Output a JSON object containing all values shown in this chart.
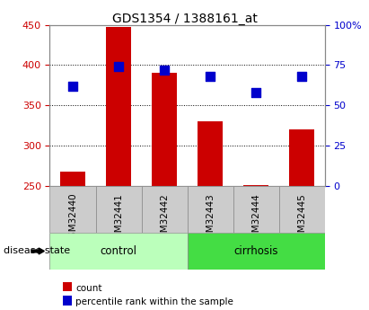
{
  "title": "GDS1354 / 1388161_at",
  "samples": [
    "GSM32440",
    "GSM32441",
    "GSM32442",
    "GSM32443",
    "GSM32444",
    "GSM32445"
  ],
  "bar_values": [
    268,
    447,
    390,
    330,
    251,
    320
  ],
  "bar_bottom": 250,
  "percentile_values": [
    62,
    74,
    72,
    68,
    58,
    68
  ],
  "groups": [
    {
      "label": "control",
      "indices": [
        0,
        1,
        2
      ],
      "color": "#bbffbb"
    },
    {
      "label": "cirrhosis",
      "indices": [
        3,
        4,
        5
      ],
      "color": "#44dd44"
    }
  ],
  "group_label": "disease state",
  "ylim_left": [
    250,
    450
  ],
  "ylim_right": [
    0,
    100
  ],
  "yticks_left": [
    250,
    300,
    350,
    400,
    450
  ],
  "yticks_right": [
    0,
    25,
    50,
    75,
    100
  ],
  "bar_color": "#cc0000",
  "dot_color": "#0000cc",
  "grid_color": "#000000",
  "bg_color": "#ffffff",
  "tick_label_color_left": "#cc0000",
  "tick_label_color_right": "#0000cc",
  "legend_count_label": "count",
  "legend_percentile_label": "percentile rank within the sample",
  "bar_width": 0.55,
  "dot_size": 50,
  "dot_marker": "s",
  "sample_cell_color": "#cccccc",
  "sample_cell_edge_color": "#888888"
}
